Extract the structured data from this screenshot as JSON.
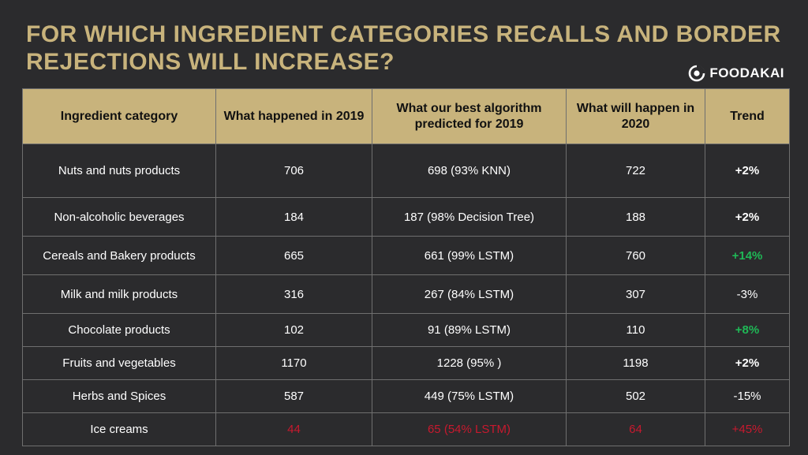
{
  "title": "FOR WHICH INGREDIENT CATEGORIES RECALLS AND BORDER REJECTIONS WILL INCREASE?",
  "logo": {
    "text": "FOODAKAI"
  },
  "colors": {
    "gold": "#c8b37c",
    "background": "#2b2b2d",
    "green": "#1fb856",
    "red": "#c8192e"
  },
  "chart_data": {
    "type": "table",
    "columns": [
      "Ingredient category",
      "What happened in 2019",
      "What our best algorithm predicted for 2019",
      "What will happen in 2020",
      "Trend"
    ],
    "rows": [
      {
        "category": "Nuts and nuts products",
        "happened_2019": "706",
        "predicted_2019": "698  (93% KNN)",
        "forecast_2020": "722",
        "trend": "+2%",
        "style": "bold"
      },
      {
        "category": "Non-alcoholic beverages",
        "happened_2019": "184",
        "predicted_2019": "187 (98% Decision Tree)",
        "forecast_2020": "188",
        "trend": "+2%",
        "style": "bold"
      },
      {
        "category": "Cereals and Bakery products",
        "happened_2019": "665",
        "predicted_2019": "661 (99% LSTM)",
        "forecast_2020": "760",
        "trend": "+14%",
        "style": "green"
      },
      {
        "category": "Milk and milk products",
        "happened_2019": "316",
        "predicted_2019": "267 (84% LSTM)",
        "forecast_2020": "307",
        "trend": "-3%",
        "style": "neutral"
      },
      {
        "category": "Chocolate products",
        "happened_2019": "102",
        "predicted_2019": "91 (89% LSTM)",
        "forecast_2020": "110",
        "trend": "+8%",
        "style": "green"
      },
      {
        "category": "Fruits and vegetables",
        "happened_2019": "1170",
        "predicted_2019": "1228 (95% )",
        "forecast_2020": "1198",
        "trend": "+2%",
        "style": "bold"
      },
      {
        "category": "Herbs and Spices",
        "happened_2019": "587",
        "predicted_2019": "449 (75% LSTM)",
        "forecast_2020": "502",
        "trend": "-15%",
        "style": "neutral"
      },
      {
        "category": "Ice creams",
        "happened_2019": "44",
        "predicted_2019": "65 (54% LSTM)",
        "forecast_2020": "64",
        "trend": "+45%",
        "style": "red"
      }
    ]
  }
}
